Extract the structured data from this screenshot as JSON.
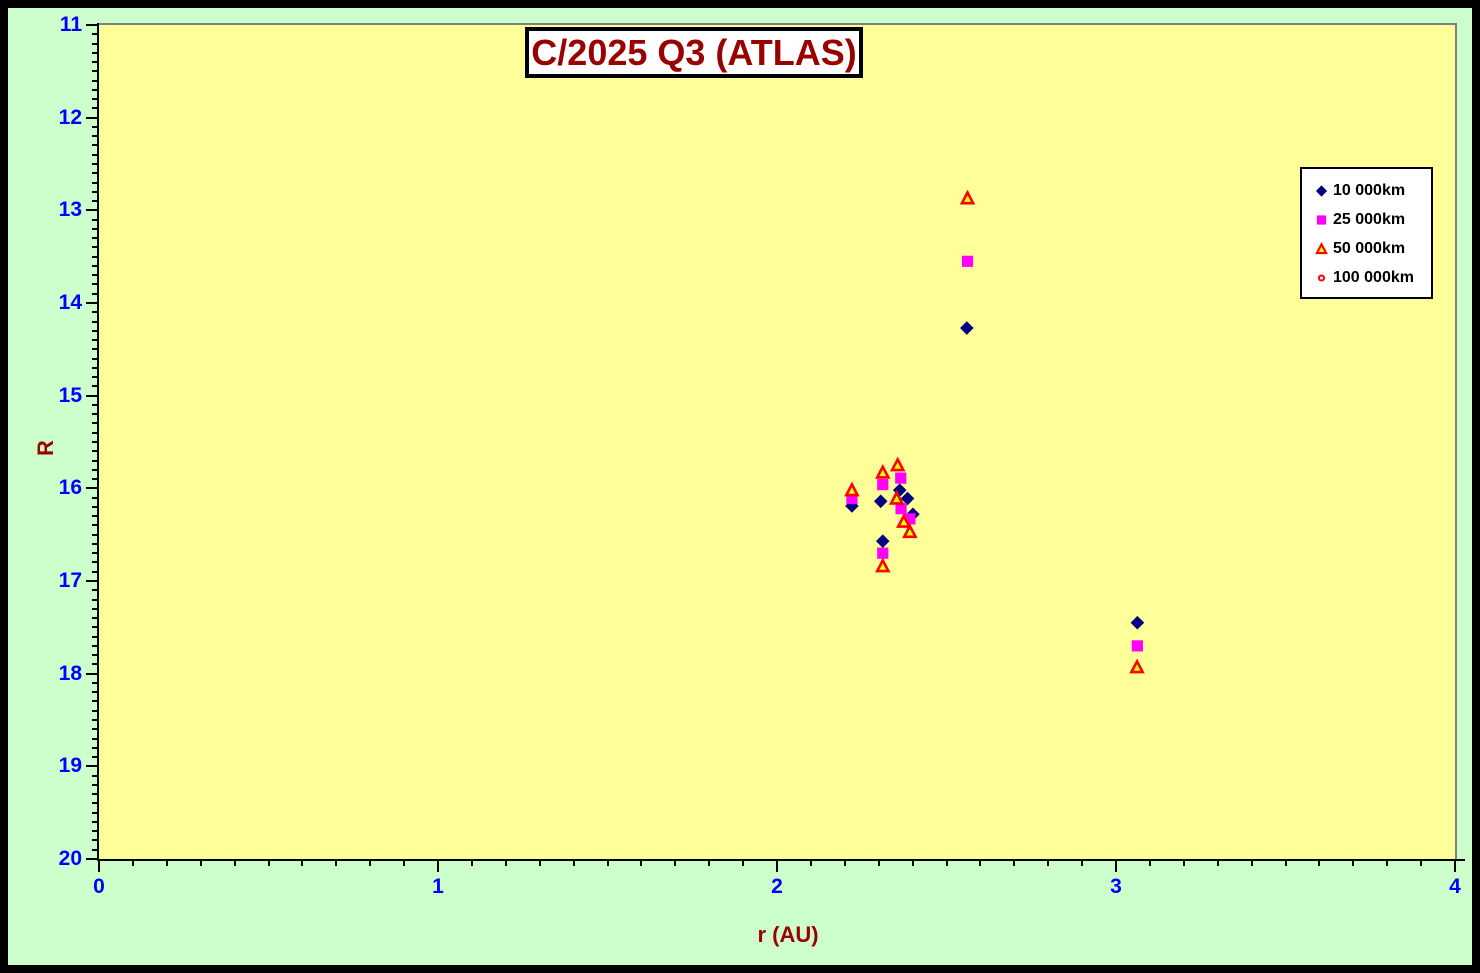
{
  "title": {
    "text": "C/2025 Q3 (ATLAS)"
  },
  "colors": {
    "window_bg": "#ccffcc",
    "plot_bg": "#ffff99",
    "frame": "#000000",
    "secondary_frame": "#808080",
    "tick_label": "#0000ff",
    "axis_title": "#990000",
    "series_diamond": "#000080",
    "series_square": "#ff00ff",
    "series_triangle_fill": "#ffff00",
    "series_triangle_stroke": "#ff0000",
    "series_circle_fill": "#ffffff",
    "series_circle_stroke": "#ff0000"
  },
  "axes": {
    "x": {
      "label": "r (AU)",
      "min": 0,
      "max": 4,
      "major_ticks": [
        0,
        1,
        2,
        3,
        4
      ],
      "minor_step": 0.1
    },
    "y": {
      "label": "R",
      "min": 11,
      "max": 20,
      "major_ticks": [
        11,
        12,
        13,
        14,
        15,
        16,
        17,
        18,
        19,
        20
      ],
      "minor_step": 0.1,
      "inverted": true
    }
  },
  "legend": {
    "items": [
      {
        "label": "10 000km",
        "marker": "diamond"
      },
      {
        "label": "25 000km",
        "marker": "square"
      },
      {
        "label": "50 000km",
        "marker": "triangle"
      },
      {
        "label": "100 000km",
        "marker": "circle"
      }
    ]
  },
  "chart_data": {
    "type": "scatter",
    "title": "C/2025 Q3 (ATLAS)",
    "xlabel": "r (AU)",
    "ylabel": "R",
    "xlim": [
      0,
      4
    ],
    "ylim": [
      20,
      11
    ],
    "y_axis_inverted": true,
    "grid": false,
    "legend_position": "upper-right-inside",
    "series": [
      {
        "name": "10 000km",
        "marker": "diamond",
        "points": [
          [
            2.221,
            16.19
          ],
          [
            2.306,
            16.14
          ],
          [
            2.362,
            16.02
          ],
          [
            2.385,
            16.11
          ],
          [
            2.401,
            16.28
          ],
          [
            2.312,
            16.57
          ],
          [
            2.56,
            14.27
          ],
          [
            3.063,
            17.45
          ]
        ]
      },
      {
        "name": "25 000km",
        "marker": "square",
        "points": [
          [
            2.221,
            16.11
          ],
          [
            2.312,
            15.96
          ],
          [
            2.365,
            15.89
          ],
          [
            2.366,
            16.22
          ],
          [
            2.392,
            16.33
          ],
          [
            2.312,
            16.7
          ],
          [
            2.562,
            13.55
          ],
          [
            3.063,
            17.7
          ]
        ]
      },
      {
        "name": "50 000km",
        "marker": "triangle",
        "points": [
          [
            2.221,
            16.02
          ],
          [
            2.312,
            15.83
          ],
          [
            2.356,
            15.75
          ],
          [
            2.353,
            16.11
          ],
          [
            2.374,
            16.36
          ],
          [
            2.392,
            16.47
          ],
          [
            2.312,
            16.84
          ],
          [
            2.562,
            12.87
          ],
          [
            3.062,
            17.93
          ]
        ]
      },
      {
        "name": "100 000km",
        "marker": "circle",
        "points": []
      }
    ]
  }
}
